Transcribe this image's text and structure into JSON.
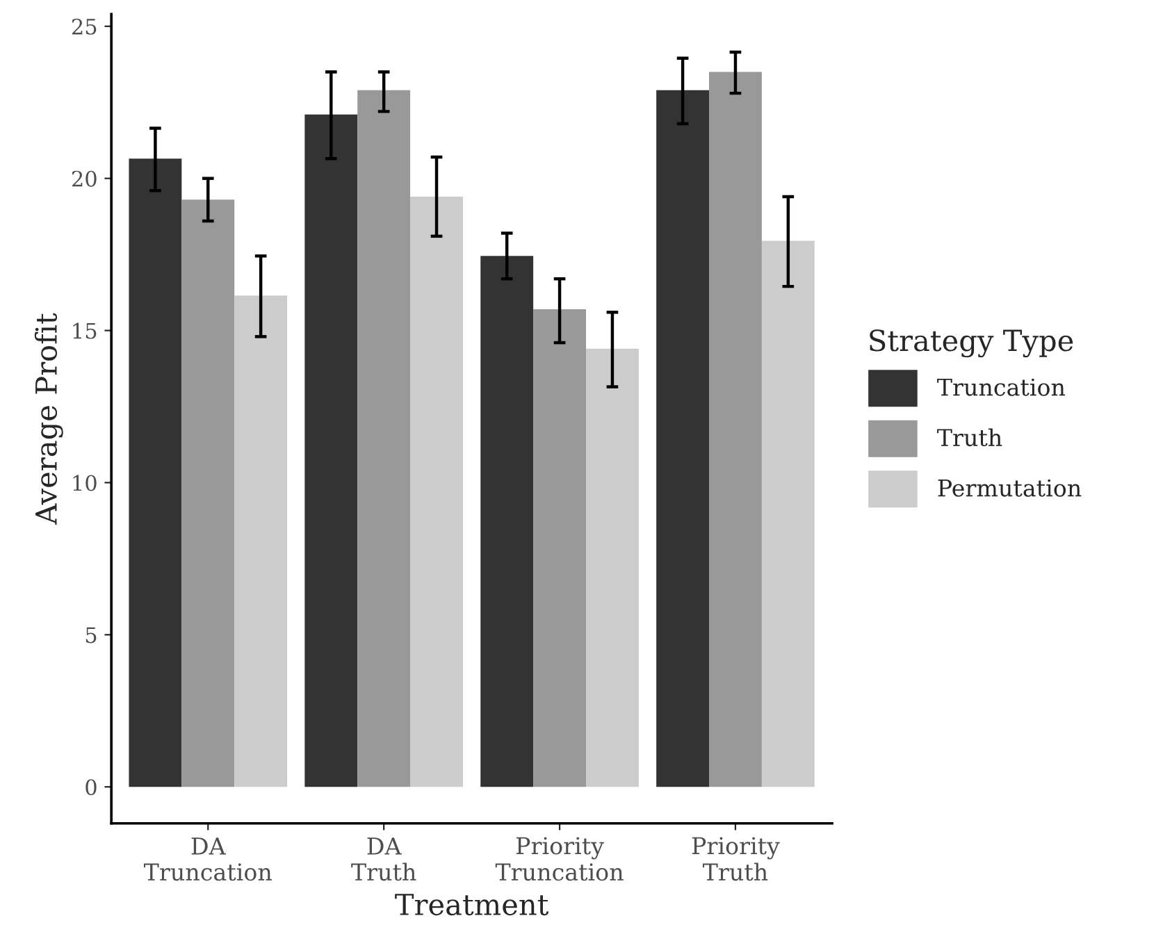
{
  "chart_data": {
    "type": "bar",
    "xlabel": "Treatment",
    "ylabel": "Average Profit",
    "legend_title": "Strategy Type",
    "categories": [
      "DA\nTruncation",
      "DA\nTruth",
      "Priority\nTruncation",
      "Priority\nTruth"
    ],
    "series": [
      {
        "name": "Truncation",
        "color": "#333333",
        "values": [
          20.65,
          22.1,
          17.45,
          22.9
        ],
        "errors": [
          [
            19.6,
            21.65
          ],
          [
            20.65,
            23.5
          ],
          [
            16.7,
            18.2
          ],
          [
            21.8,
            23.95
          ]
        ]
      },
      {
        "name": "Truth",
        "color": "#999999",
        "values": [
          19.3,
          22.9,
          15.7,
          23.5
        ],
        "errors": [
          [
            18.6,
            20.0
          ],
          [
            22.2,
            23.5
          ],
          [
            14.6,
            16.7
          ],
          [
            22.8,
            24.15
          ]
        ]
      },
      {
        "name": "Permutation",
        "color": "#cccccc",
        "values": [
          16.15,
          19.4,
          14.4,
          17.95
        ],
        "errors": [
          [
            14.8,
            17.45
          ],
          [
            18.1,
            20.7
          ],
          [
            13.15,
            15.6
          ],
          [
            16.45,
            19.4
          ]
        ]
      }
    ],
    "ylim": [
      -1.2,
      25.4
    ],
    "yticks": [
      0,
      5,
      10,
      15,
      20,
      25
    ],
    "grid": false,
    "legend": "right"
  }
}
